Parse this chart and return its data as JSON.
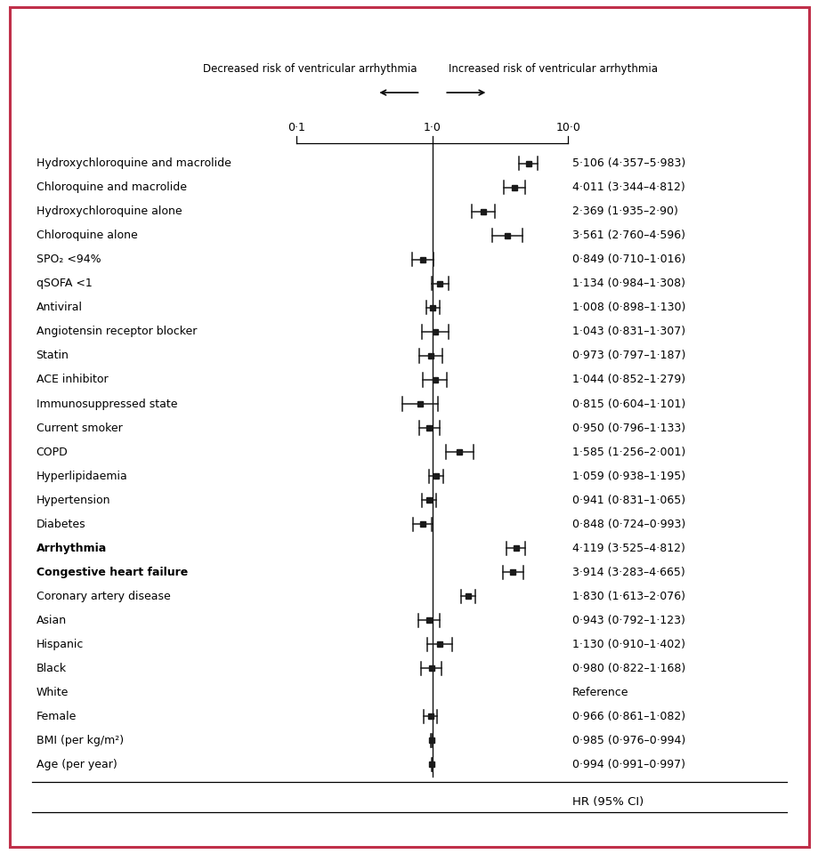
{
  "title": "HR (95% CI)",
  "rows": [
    {
      "label": "Age (per year)",
      "hr": 0.994,
      "lo": 0.991,
      "hi": 0.997,
      "ref": false,
      "bold": false
    },
    {
      "label": "BMI (per kg/m²)",
      "hr": 0.985,
      "lo": 0.976,
      "hi": 0.994,
      "ref": false,
      "bold": false
    },
    {
      "label": "Female",
      "hr": 0.966,
      "lo": 0.861,
      "hi": 1.082,
      "ref": false,
      "bold": false
    },
    {
      "label": "White",
      "hr": null,
      "lo": null,
      "hi": null,
      "ref": true,
      "bold": false
    },
    {
      "label": "Black",
      "hr": 0.98,
      "lo": 0.822,
      "hi": 1.168,
      "ref": false,
      "bold": false
    },
    {
      "label": "Hispanic",
      "hr": 1.13,
      "lo": 0.91,
      "hi": 1.402,
      "ref": false,
      "bold": false
    },
    {
      "label": "Asian",
      "hr": 0.943,
      "lo": 0.792,
      "hi": 1.123,
      "ref": false,
      "bold": false
    },
    {
      "label": "Coronary artery disease",
      "hr": 1.83,
      "lo": 1.613,
      "hi": 2.076,
      "ref": false,
      "bold": false
    },
    {
      "label": "Congestive heart failure",
      "hr": 3.914,
      "lo": 3.283,
      "hi": 4.665,
      "ref": false,
      "bold": true
    },
    {
      "label": "Arrhythmia",
      "hr": 4.119,
      "lo": 3.525,
      "hi": 4.812,
      "ref": false,
      "bold": true
    },
    {
      "label": "Diabetes",
      "hr": 0.848,
      "lo": 0.724,
      "hi": 0.993,
      "ref": false,
      "bold": false
    },
    {
      "label": "Hypertension",
      "hr": 0.941,
      "lo": 0.831,
      "hi": 1.065,
      "ref": false,
      "bold": false
    },
    {
      "label": "Hyperlipidaemia",
      "hr": 1.059,
      "lo": 0.938,
      "hi": 1.195,
      "ref": false,
      "bold": false
    },
    {
      "label": "COPD",
      "hr": 1.585,
      "lo": 1.256,
      "hi": 2.001,
      "ref": false,
      "bold": false
    },
    {
      "label": "Current smoker",
      "hr": 0.95,
      "lo": 0.796,
      "hi": 1.133,
      "ref": false,
      "bold": false
    },
    {
      "label": "Immunosuppressed state",
      "hr": 0.815,
      "lo": 0.604,
      "hi": 1.101,
      "ref": false,
      "bold": false
    },
    {
      "label": "ACE inhibitor",
      "hr": 1.044,
      "lo": 0.852,
      "hi": 1.279,
      "ref": false,
      "bold": false
    },
    {
      "label": "Statin",
      "hr": 0.973,
      "lo": 0.797,
      "hi": 1.187,
      "ref": false,
      "bold": false
    },
    {
      "label": "Angiotensin receptor blocker",
      "hr": 1.043,
      "lo": 0.831,
      "hi": 1.307,
      "ref": false,
      "bold": false
    },
    {
      "label": "Antiviral",
      "hr": 1.008,
      "lo": 0.898,
      "hi": 1.13,
      "ref": false,
      "bold": false
    },
    {
      "label": "qSOFA <1",
      "hr": 1.134,
      "lo": 0.984,
      "hi": 1.308,
      "ref": false,
      "bold": false
    },
    {
      "label": "SPO₂ <94%",
      "hr": 0.849,
      "lo": 0.71,
      "hi": 1.016,
      "ref": false,
      "bold": false
    },
    {
      "label": "Chloroquine alone",
      "hr": 3.561,
      "lo": 2.76,
      "hi": 4.596,
      "ref": false,
      "bold": false
    },
    {
      "label": "Hydroxychloroquine alone",
      "hr": 2.369,
      "lo": 1.935,
      "hi": 2.9,
      "ref": false,
      "bold": false
    },
    {
      "label": "Chloroquine and macrolide",
      "hr": 4.011,
      "lo": 3.344,
      "hi": 4.812,
      "ref": false,
      "bold": false
    },
    {
      "label": "Hydroxychloroquine and macrolide",
      "hr": 5.106,
      "lo": 4.357,
      "hi": 5.983,
      "ref": false,
      "bold": false
    }
  ],
  "hr_texts": [
    "0·994 (0·991–0·997)",
    "0·985 (0·976–0·994)",
    "0·966 (0·861–1·082)",
    "Reference",
    "0·980 (0·822–1·168)",
    "1·130 (0·910–1·402)",
    "0·943 (0·792–1·123)",
    "1·830 (1·613–2·076)",
    "3·914 (3·283–4·665)",
    "4·119 (3·525–4·812)",
    "0·848 (0·724–0·993)",
    "0·941 (0·831–1·065)",
    "1·059 (0·938–1·195)",
    "1·585 (1·256–2·001)",
    "0·950 (0·796–1·133)",
    "0·815 (0·604–1·101)",
    "1·044 (0·852–1·279)",
    "0·973 (0·797–1·187)",
    "1·043 (0·831–1·307)",
    "1·008 (0·898–1·130)",
    "1·134 (0·984–1·308)",
    "0·849 (0·710–1·016)",
    "3·561 (2·760–4·596)",
    "2·369 (1·935–2·90)",
    "4·011 (3·344–4·812)",
    "5·106 (4·357–5·983)"
  ],
  "xticks": [
    0.1,
    1.0,
    10.0
  ],
  "xtick_labels": [
    "0·1",
    "1·0",
    "10·0"
  ],
  "xlabel_left": "Decreased risk of ventricular arrhythmia",
  "xlabel_right": "Increased risk of ventricular arrhythmia",
  "marker_color": "#1a1a1a",
  "ci_color": "#1a1a1a",
  "border_color": "#c0304a",
  "background_color": "#ffffff",
  "fontsize": 9.0,
  "header_fontsize": 9.5
}
